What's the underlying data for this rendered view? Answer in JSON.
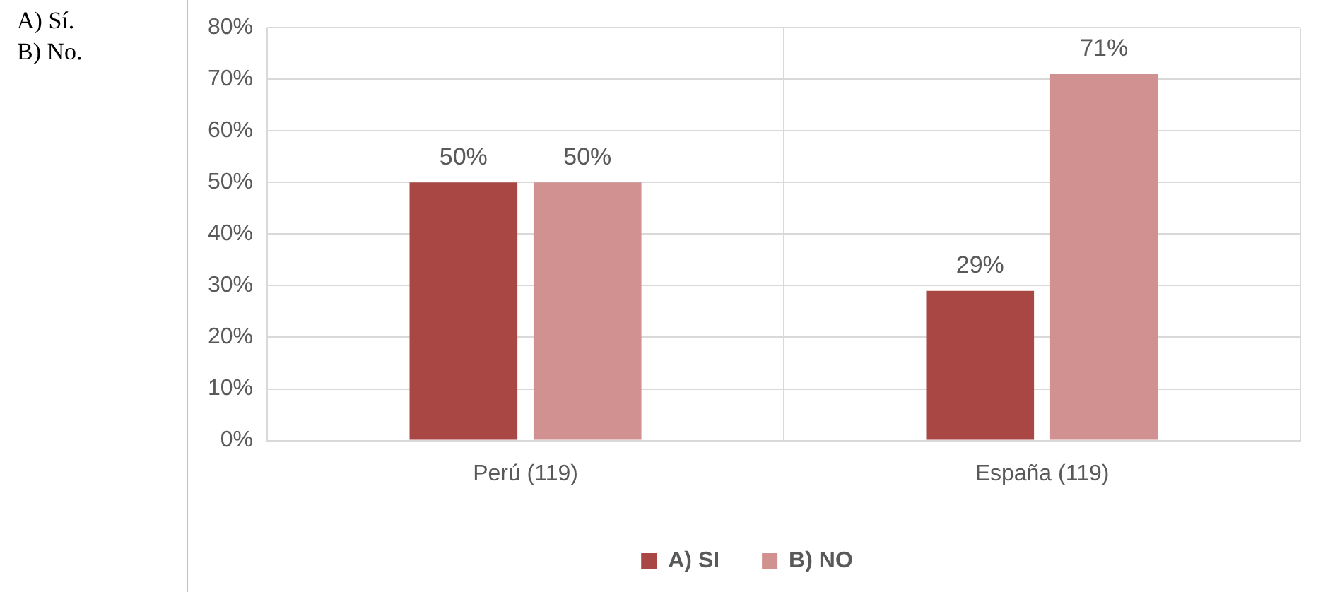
{
  "chart_data": {
    "type": "bar",
    "annotations": [
      "A) Sí.",
      "B) No."
    ],
    "categories": [
      "Perú (119)",
      "España (119)"
    ],
    "series": [
      {
        "name": "A) SI",
        "color": "#a94744",
        "values": [
          50,
          29
        ],
        "value_labels": [
          "50%",
          "29%"
        ]
      },
      {
        "name": "B) NO",
        "color": "#d19190",
        "values": [
          50,
          71
        ],
        "value_labels": [
          "50%",
          "71%"
        ]
      }
    ],
    "ylim": [
      0,
      80
    ],
    "yticks": [
      {
        "value": 0,
        "label": "0%"
      },
      {
        "value": 10,
        "label": "10%"
      },
      {
        "value": 20,
        "label": "20%"
      },
      {
        "value": 30,
        "label": "30%"
      },
      {
        "value": 40,
        "label": "40%"
      },
      {
        "value": 50,
        "label": "50%"
      },
      {
        "value": 60,
        "label": "60%"
      },
      {
        "value": 70,
        "label": "70%"
      },
      {
        "value": 80,
        "label": "80%"
      }
    ],
    "grid": true,
    "legend": "bottom"
  }
}
